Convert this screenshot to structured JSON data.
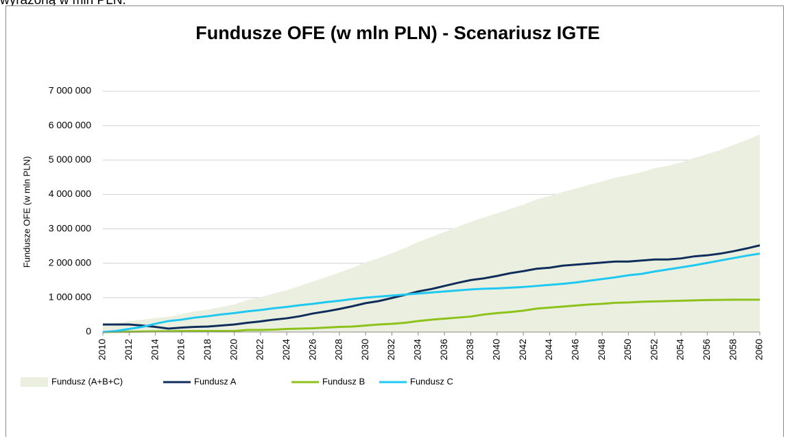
{
  "page_text": "wyrażoną w mln PLN.",
  "chart_data": {
    "type": "line",
    "title": "Fundusze OFE (w mln PLN) - Scenariusz IGTE",
    "ylabel": "Fundusze OFE (w mln PLN)",
    "x": [
      2010,
      2011,
      2012,
      2013,
      2014,
      2015,
      2016,
      2017,
      2018,
      2019,
      2020,
      2021,
      2022,
      2023,
      2024,
      2025,
      2026,
      2027,
      2028,
      2029,
      2030,
      2031,
      2032,
      2033,
      2034,
      2035,
      2036,
      2037,
      2038,
      2039,
      2040,
      2041,
      2042,
      2043,
      2044,
      2045,
      2046,
      2047,
      2048,
      2049,
      2050,
      2051,
      2052,
      2053,
      2054,
      2055,
      2056,
      2057,
      2058,
      2059,
      2060
    ],
    "xlim": [
      2010,
      2060
    ],
    "xticks": [
      2010,
      2012,
      2014,
      2016,
      2018,
      2020,
      2022,
      2024,
      2026,
      2028,
      2030,
      2032,
      2034,
      2036,
      2038,
      2040,
      2042,
      2044,
      2046,
      2048,
      2050,
      2052,
      2054,
      2056,
      2058,
      2060
    ],
    "ylim": [
      0,
      7000000
    ],
    "yticks": [
      0,
      {
        "value": 1000000,
        "label": "1 000 000"
      },
      {
        "value": 2000000,
        "label": "2 000 000"
      },
      {
        "value": 3000000,
        "label": "3 000 000"
      },
      {
        "value": 4000000,
        "label": "4 000 000"
      },
      {
        "value": 5000000,
        "label": "5 000 000"
      },
      {
        "value": 6000000,
        "label": "6 000 000"
      },
      {
        "value": 7000000,
        "label": "7 000 000"
      }
    ],
    "grid": true,
    "series": [
      {
        "name": "Fundusz (A+B+C)",
        "type": "area",
        "color": "#ebefdf",
        "values": [
          220000,
          255000,
          320000,
          355000,
          410000,
          445000,
          520000,
          600000,
          650000,
          730000,
          800000,
          930000,
          1010000,
          1120000,
          1220000,
          1340000,
          1470000,
          1600000,
          1730000,
          1870000,
          2030000,
          2150000,
          2290000,
          2440000,
          2620000,
          2760000,
          2910000,
          3060000,
          3200000,
          3330000,
          3450000,
          3580000,
          3700000,
          3860000,
          3950000,
          4070000,
          4170000,
          4280000,
          4380000,
          4490000,
          4560000,
          4650000,
          4760000,
          4830000,
          4930000,
          5060000,
          5170000,
          5295000,
          5440000,
          5590000,
          5740000
        ]
      },
      {
        "name": "Fundusz A",
        "type": "line",
        "color": "#0f2d5a",
        "values": [
          220000,
          220000,
          220000,
          190000,
          150000,
          100000,
          130000,
          150000,
          160000,
          190000,
          220000,
          270000,
          310000,
          360000,
          400000,
          460000,
          540000,
          600000,
          670000,
          750000,
          840000,
          900000,
          990000,
          1080000,
          1180000,
          1250000,
          1340000,
          1430000,
          1510000,
          1560000,
          1630000,
          1710000,
          1770000,
          1840000,
          1870000,
          1930000,
          1960000,
          1990000,
          2020000,
          2050000,
          2050000,
          2080000,
          2110000,
          2110000,
          2140000,
          2200000,
          2230000,
          2280000,
          2350000,
          2430000,
          2520000
        ]
      },
      {
        "name": "Fundusz B",
        "type": "line",
        "color": "#8cc21a",
        "values": [
          0,
          5000,
          10000,
          15000,
          20000,
          25000,
          30000,
          30000,
          30000,
          30000,
          30000,
          60000,
          60000,
          70000,
          90000,
          100000,
          110000,
          130000,
          150000,
          160000,
          190000,
          220000,
          240000,
          270000,
          320000,
          360000,
          390000,
          420000,
          450000,
          510000,
          550000,
          580000,
          620000,
          680000,
          710000,
          740000,
          770000,
          800000,
          820000,
          850000,
          860000,
          880000,
          890000,
          900000,
          910000,
          920000,
          930000,
          935000,
          940000,
          940000,
          940000
        ]
      },
      {
        "name": "Fundusz C",
        "type": "line",
        "color": "#1ec8f0",
        "values": [
          0,
          30000,
          90000,
          150000,
          240000,
          320000,
          360000,
          420000,
          460000,
          510000,
          550000,
          600000,
          640000,
          690000,
          730000,
          780000,
          820000,
          870000,
          910000,
          960000,
          1000000,
          1030000,
          1060000,
          1090000,
          1120000,
          1150000,
          1180000,
          1210000,
          1240000,
          1260000,
          1270000,
          1290000,
          1310000,
          1340000,
          1370000,
          1400000,
          1440000,
          1490000,
          1540000,
          1590000,
          1650000,
          1690000,
          1760000,
          1820000,
          1880000,
          1940000,
          2010000,
          2080000,
          2150000,
          2220000,
          2280000
        ]
      }
    ]
  }
}
